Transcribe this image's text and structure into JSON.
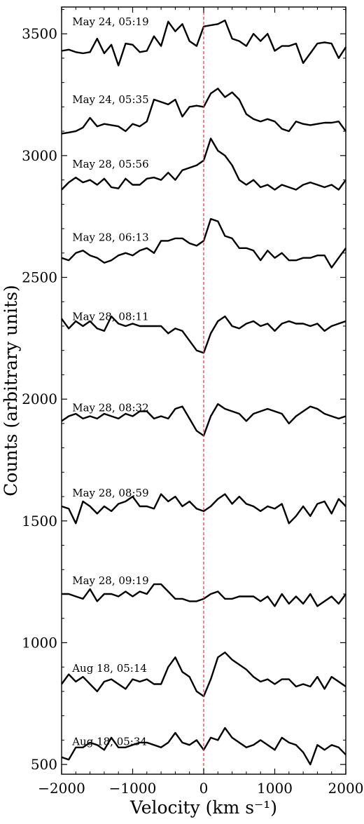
{
  "chart_data": {
    "type": "line",
    "xlabel": "Velocity (km s⁻¹)",
    "ylabel": "Counts (arbitrary units)",
    "xlim": [
      -2000,
      2000
    ],
    "ylim": [
      460,
      3610
    ],
    "xticks": [
      -2000,
      -1000,
      0,
      1000,
      2000
    ],
    "xtick_labels": [
      "−2000",
      "−1000",
      "0",
      "1000",
      "2000"
    ],
    "yticks": [
      500,
      1000,
      1500,
      2000,
      2500,
      3000,
      3500
    ],
    "ytick_labels": [
      "500",
      "1000",
      "1500",
      "2000",
      "2500",
      "3000",
      "3500"
    ],
    "grid": false,
    "legend": "none",
    "reference_line": {
      "x": 0,
      "style": "dashed",
      "color": "#e0342f"
    },
    "line_color": "#000000",
    "x": [
      -2000,
      -1900,
      -1800,
      -1700,
      -1600,
      -1500,
      -1400,
      -1300,
      -1200,
      -1100,
      -1000,
      -900,
      -800,
      -700,
      -600,
      -500,
      -400,
      -300,
      -200,
      -100,
      0,
      100,
      200,
      300,
      400,
      500,
      600,
      700,
      800,
      900,
      1000,
      1100,
      1200,
      1300,
      1400,
      1500,
      1600,
      1700,
      1800,
      1900,
      2000
    ],
    "series": [
      {
        "label": "May 24, 05:19",
        "label_x": -1850,
        "label_y": 3535,
        "values": [
          3430,
          3435,
          3425,
          3420,
          3425,
          3480,
          3420,
          3455,
          3370,
          3460,
          3455,
          3425,
          3430,
          3490,
          3450,
          3550,
          3510,
          3540,
          3470,
          3450,
          3530,
          3535,
          3540,
          3555,
          3480,
          3470,
          3450,
          3500,
          3470,
          3500,
          3430,
          3450,
          3450,
          3460,
          3380,
          3420,
          3460,
          3465,
          3460,
          3400,
          3445
        ]
      },
      {
        "label": "May 24, 05:35",
        "label_x": -1850,
        "label_y": 3215,
        "values": [
          3090,
          3095,
          3100,
          3115,
          3155,
          3120,
          3130,
          3125,
          3120,
          3100,
          3130,
          3120,
          3140,
          3230,
          3220,
          3210,
          3230,
          3160,
          3200,
          3205,
          3200,
          3255,
          3275,
          3240,
          3260,
          3230,
          3170,
          3150,
          3140,
          3150,
          3140,
          3110,
          3100,
          3140,
          3130,
          3125,
          3130,
          3135,
          3135,
          3140,
          3100
        ]
      },
      {
        "label": "May 28, 05:56",
        "label_x": -1850,
        "label_y": 2950,
        "values": [
          2860,
          2890,
          2910,
          2890,
          2900,
          2880,
          2905,
          2870,
          2865,
          2905,
          2880,
          2880,
          2905,
          2910,
          2900,
          2930,
          2900,
          2940,
          2950,
          2960,
          2980,
          3070,
          3020,
          3000,
          2960,
          2900,
          2880,
          2900,
          2870,
          2880,
          2860,
          2880,
          2870,
          2860,
          2880,
          2890,
          2880,
          2870,
          2880,
          2860,
          2900
        ]
      },
      {
        "label": "May 28, 06:13",
        "label_x": -1850,
        "label_y": 2650,
        "values": [
          2580,
          2570,
          2600,
          2610,
          2590,
          2580,
          2560,
          2570,
          2590,
          2600,
          2590,
          2610,
          2620,
          2600,
          2650,
          2650,
          2660,
          2660,
          2640,
          2630,
          2650,
          2740,
          2730,
          2670,
          2660,
          2620,
          2620,
          2610,
          2570,
          2610,
          2580,
          2600,
          2570,
          2570,
          2580,
          2580,
          2590,
          2590,
          2540,
          2580,
          2620
        ]
      },
      {
        "label": "May 28, 08:11",
        "label_x": -1850,
        "label_y": 2325,
        "values": [
          2330,
          2290,
          2320,
          2300,
          2320,
          2290,
          2280,
          2340,
          2310,
          2300,
          2310,
          2300,
          2300,
          2300,
          2300,
          2270,
          2290,
          2280,
          2240,
          2200,
          2190,
          2270,
          2320,
          2340,
          2300,
          2290,
          2310,
          2320,
          2300,
          2310,
          2280,
          2310,
          2320,
          2310,
          2310,
          2300,
          2310,
          2280,
          2300,
          2310,
          2320
        ]
      },
      {
        "label": "May 28, 08:32",
        "label_x": -1850,
        "label_y": 1950,
        "values": [
          1910,
          1930,
          1940,
          1920,
          1930,
          1920,
          1940,
          1930,
          1920,
          1940,
          1930,
          1950,
          1950,
          1920,
          1930,
          1920,
          1960,
          1970,
          1920,
          1870,
          1850,
          1930,
          1980,
          1960,
          1950,
          1940,
          1910,
          1940,
          1950,
          1960,
          1950,
          1940,
          1900,
          1930,
          1950,
          1970,
          1960,
          1940,
          1930,
          1920,
          1930
        ]
      },
      {
        "label": "May 28, 08:59",
        "label_x": -1850,
        "label_y": 1600,
        "values": [
          1560,
          1550,
          1490,
          1580,
          1560,
          1530,
          1560,
          1540,
          1570,
          1580,
          1600,
          1560,
          1560,
          1550,
          1610,
          1580,
          1600,
          1560,
          1580,
          1550,
          1540,
          1560,
          1590,
          1610,
          1570,
          1600,
          1570,
          1560,
          1540,
          1560,
          1550,
          1570,
          1490,
          1520,
          1560,
          1520,
          1570,
          1580,
          1530,
          1590,
          1560
        ]
      },
      {
        "label": "May 28, 09:19",
        "label_x": -1850,
        "label_y": 1240,
        "values": [
          1200,
          1200,
          1190,
          1180,
          1220,
          1170,
          1200,
          1200,
          1190,
          1210,
          1190,
          1210,
          1200,
          1240,
          1240,
          1210,
          1180,
          1180,
          1170,
          1170,
          1180,
          1200,
          1210,
          1180,
          1180,
          1190,
          1190,
          1190,
          1170,
          1190,
          1150,
          1200,
          1160,
          1190,
          1160,
          1200,
          1150,
          1170,
          1190,
          1160,
          1200
        ]
      },
      {
        "label": "Aug 18, 05:14",
        "label_x": -1850,
        "label_y": 880,
        "values": [
          830,
          870,
          840,
          860,
          830,
          800,
          840,
          850,
          830,
          810,
          850,
          840,
          850,
          830,
          830,
          900,
          940,
          880,
          860,
          800,
          780,
          850,
          940,
          960,
          930,
          910,
          890,
          860,
          840,
          850,
          830,
          850,
          850,
          820,
          830,
          820,
          860,
          810,
          860,
          840,
          820
        ]
      },
      {
        "label": "Aug 18, 05:34",
        "label_x": -1850,
        "label_y": 580,
        "values": [
          530,
          520,
          570,
          570,
          590,
          580,
          560,
          610,
          570,
          570,
          580,
          590,
          590,
          580,
          570,
          590,
          630,
          590,
          580,
          600,
          560,
          610,
          600,
          650,
          610,
          590,
          570,
          580,
          600,
          580,
          560,
          610,
          590,
          580,
          550,
          500,
          580,
          560,
          580,
          570,
          540
        ]
      }
    ]
  }
}
